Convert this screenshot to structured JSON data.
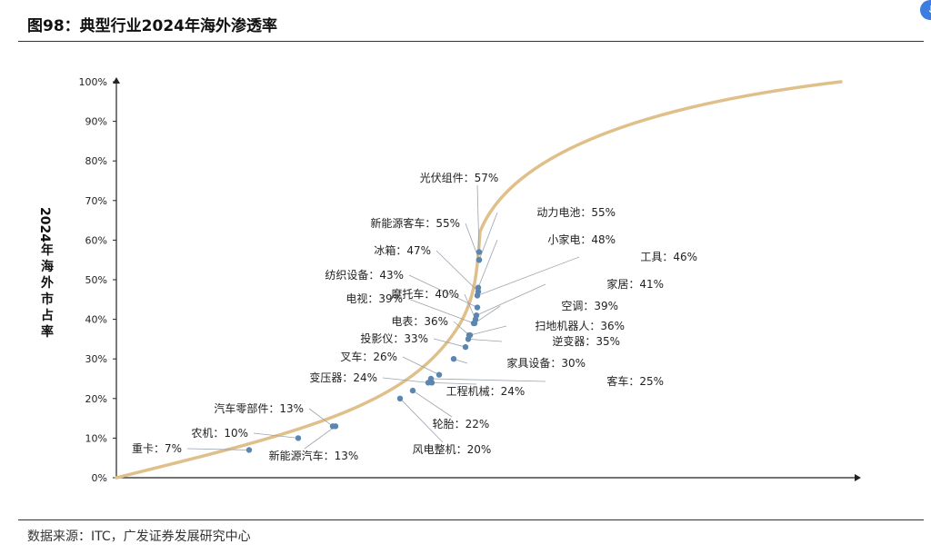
{
  "header": {
    "title": "图98：典型行业2024年海外渗透率"
  },
  "footer": {
    "source": "数据来源：ITC，广发证券发展研究中心"
  },
  "chart_data": {
    "type": "scatter",
    "title": "",
    "ylabel": "2024年海外市占率",
    "ylim": [
      0,
      100
    ],
    "yticks": [
      "0%",
      "10%",
      "20%",
      "30%",
      "40%",
      "50%",
      "60%",
      "70%",
      "80%",
      "90%",
      "100%"
    ],
    "curve_color": "#e0c08a",
    "point_color": "#5b86b0",
    "points": [
      {
        "name": "重卡",
        "value": 7,
        "label": "重卡：7%"
      },
      {
        "name": "农机",
        "value": 10,
        "label": "农机：10%"
      },
      {
        "name": "汽车零部件",
        "value": 13,
        "label": "汽车零部件：13%"
      },
      {
        "name": "新能源汽车",
        "value": 13,
        "label": "新能源汽车：13%"
      },
      {
        "name": "风电整机",
        "value": 20,
        "label": "风电整机：20%"
      },
      {
        "name": "轮胎",
        "value": 22,
        "label": "轮胎：22%"
      },
      {
        "name": "变压器",
        "value": 24,
        "label": "变压器：24%"
      },
      {
        "name": "工程机械",
        "value": 24,
        "label": "工程机械：24%"
      },
      {
        "name": "客车",
        "value": 25,
        "label": "客车：25%"
      },
      {
        "name": "叉车",
        "value": 26,
        "label": "叉车：26%"
      },
      {
        "name": "家具设备",
        "value": 30,
        "label": "家具设备：30%"
      },
      {
        "name": "投影仪",
        "value": 33,
        "label": "投影仪：33%"
      },
      {
        "name": "逆变器",
        "value": 35,
        "label": "逆变器：35%"
      },
      {
        "name": "电表",
        "value": 36,
        "label": "电表：36%"
      },
      {
        "name": "扫地机器人",
        "value": 36,
        "label": "扫地机器人：36%"
      },
      {
        "name": "电视",
        "value": 39,
        "label": "电视：39%"
      },
      {
        "name": "空调",
        "value": 39,
        "label": "空调：39%"
      },
      {
        "name": "摩托车",
        "value": 40,
        "label": "摩托车：40%"
      },
      {
        "name": "家居",
        "value": 41,
        "label": "家居：41%"
      },
      {
        "name": "纺织设备",
        "value": 43,
        "label": "纺织设备：43%"
      },
      {
        "name": "工具",
        "value": 46,
        "label": "工具：46%"
      },
      {
        "name": "冰箱",
        "value": 47,
        "label": "冰箱：47%"
      },
      {
        "name": "小家电",
        "value": 48,
        "label": "小家电：48%"
      },
      {
        "name": "新能源客车",
        "value": 55,
        "label": "新能源客车：55%"
      },
      {
        "name": "动力电池",
        "value": 55,
        "label": "动力电池：55%"
      },
      {
        "name": "光伏组件",
        "value": 57,
        "label": "光伏组件：57%"
      }
    ]
  }
}
